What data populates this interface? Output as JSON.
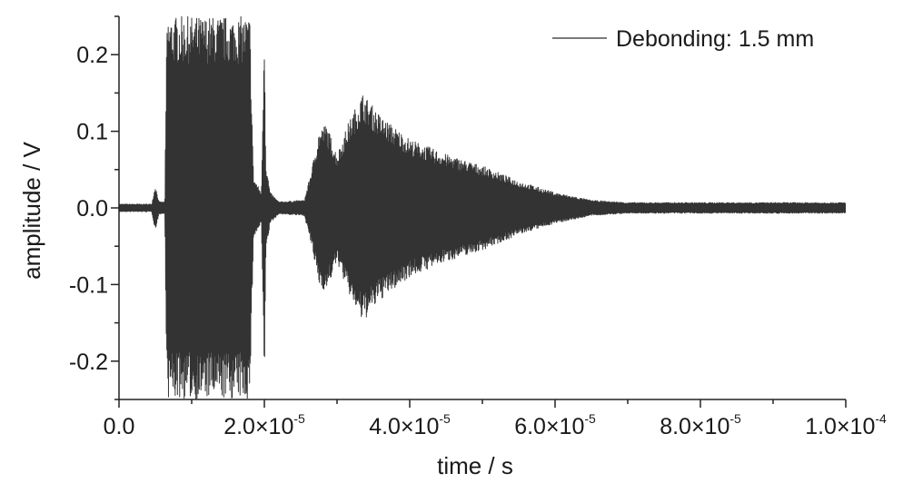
{
  "chart_data": {
    "type": "line",
    "xlabel": "time / s",
    "ylabel": "amplitude / V",
    "xlim": [
      0,
      0.0001
    ],
    "ylim": [
      -0.25,
      0.25
    ],
    "x_ticks": [
      {
        "value": 0,
        "mantissa": "0.0",
        "exp": ""
      },
      {
        "value": 2e-05,
        "mantissa": "2.0×10",
        "exp": "-5"
      },
      {
        "value": 4e-05,
        "mantissa": "4.0×10",
        "exp": "-5"
      },
      {
        "value": 6e-05,
        "mantissa": "6.0×10",
        "exp": "-5"
      },
      {
        "value": 8e-05,
        "mantissa": "8.0×10",
        "exp": "-5"
      },
      {
        "value": 0.0001,
        "mantissa": "1.0×10",
        "exp": "-4"
      }
    ],
    "y_ticks": [
      {
        "value": 0.2,
        "label": "0.2"
      },
      {
        "value": 0.1,
        "label": "0.1"
      },
      {
        "value": 0.0,
        "label": "0.0"
      },
      {
        "value": -0.1,
        "label": "-0.1"
      },
      {
        "value": -0.2,
        "label": "-0.2"
      }
    ],
    "grid": false,
    "legend_position": "top-right",
    "series": [
      {
        "name": "Debonding: 1.5 mm",
        "color": "#333333",
        "envelope": [
          {
            "x": 0.0,
            "amp": 0.005
          },
          {
            "x": 4.5e-06,
            "amp": 0.005
          },
          {
            "x": 5e-06,
            "amp": 0.03
          },
          {
            "x": 5.5e-06,
            "amp": 0.008
          },
          {
            "x": 6.3e-06,
            "amp": 0.008
          },
          {
            "x": 6.6e-06,
            "amp": 0.25
          },
          {
            "x": 1.8e-05,
            "amp": 0.25
          },
          {
            "x": 1.85e-05,
            "amp": 0.04
          },
          {
            "x": 1.96e-05,
            "amp": 0.02
          },
          {
            "x": 2e-05,
            "amp": 0.25
          },
          {
            "x": 2.02e-05,
            "amp": 0.06
          },
          {
            "x": 2.08e-05,
            "amp": 0.02
          },
          {
            "x": 2.2e-05,
            "amp": 0.008
          },
          {
            "x": 2.55e-05,
            "amp": 0.01
          },
          {
            "x": 2.65e-05,
            "amp": 0.05
          },
          {
            "x": 2.75e-05,
            "amp": 0.1
          },
          {
            "x": 2.85e-05,
            "amp": 0.11
          },
          {
            "x": 3e-05,
            "amp": 0.07
          },
          {
            "x": 3.15e-05,
            "amp": 0.11
          },
          {
            "x": 3.35e-05,
            "amp": 0.15
          },
          {
            "x": 3.6e-05,
            "amp": 0.12
          },
          {
            "x": 4e-05,
            "amp": 0.09
          },
          {
            "x": 4.5e-05,
            "amp": 0.07
          },
          {
            "x": 5e-05,
            "amp": 0.055
          },
          {
            "x": 5.5e-05,
            "amp": 0.035
          },
          {
            "x": 6e-05,
            "amp": 0.02
          },
          {
            "x": 6.5e-05,
            "amp": 0.01
          },
          {
            "x": 7e-05,
            "amp": 0.007
          },
          {
            "x": 0.0001,
            "amp": 0.007
          }
        ]
      }
    ]
  }
}
